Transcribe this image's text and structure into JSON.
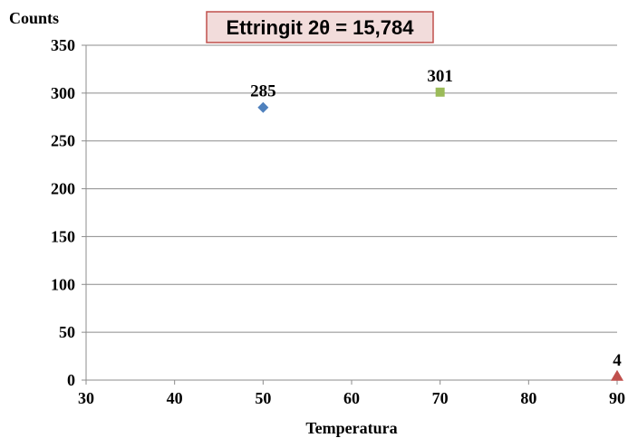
{
  "chart_data": {
    "type": "scatter",
    "title": "Ettringit 2θ = 15,784",
    "xlabel": "Temperatura",
    "ylabel": "Counts",
    "xlim": [
      30,
      90
    ],
    "ylim": [
      0,
      350
    ],
    "xticks": [
      30,
      40,
      50,
      60,
      70,
      80,
      90
    ],
    "yticks": [
      0,
      50,
      100,
      150,
      200,
      250,
      300,
      350
    ],
    "grid": "horizontal",
    "legend": "none",
    "series": [
      {
        "x": [
          50
        ],
        "y": [
          285
        ],
        "marker": "diamond",
        "color": "#4f81bd",
        "labels": [
          "285"
        ]
      },
      {
        "x": [
          70
        ],
        "y": [
          301
        ],
        "marker": "square",
        "color": "#9bbb59",
        "labels": [
          "301"
        ]
      },
      {
        "x": [
          90
        ],
        "y": [
          4
        ],
        "marker": "triangle",
        "color": "#c0504d",
        "labels": [
          "4"
        ]
      }
    ],
    "title_box": {
      "background": "#f2dcdb",
      "border": "#c0504d"
    }
  }
}
